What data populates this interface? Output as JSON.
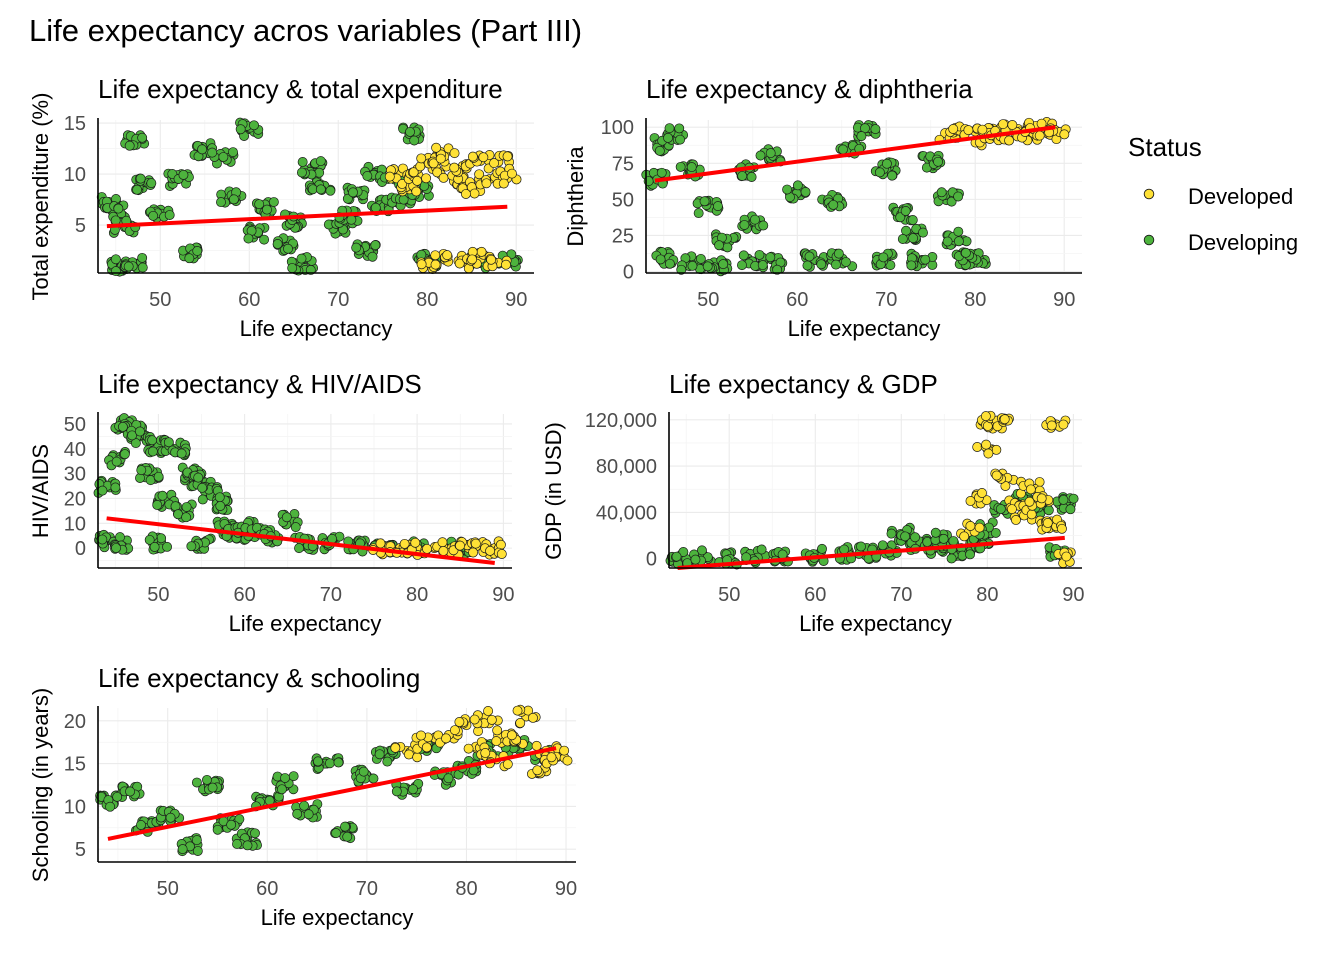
{
  "title": "Life expectancy acros variables (Part III)",
  "colors": {
    "developed": "#FFE135",
    "developing": "#4DB33D",
    "outline": "#1a1a1a",
    "fit_line": "#FF0000"
  },
  "legend": {
    "title": "Status",
    "placement": "right",
    "items": [
      {
        "label": "Developed",
        "color": "#FFE135"
      },
      {
        "label": "Developing",
        "color": "#4DB33D"
      }
    ]
  },
  "chart_data": [
    {
      "type": "scatter",
      "title": "Life expectancy & total expenditure",
      "xlabel": "Life expectancy",
      "ylabel": "Total expenditure (%)",
      "xlim": [
        43,
        92
      ],
      "ylim": [
        0.3,
        15.3
      ],
      "xticks": [
        50,
        60,
        70,
        80,
        90
      ],
      "yticks": [
        5,
        10,
        15
      ],
      "xtick_labels": [
        "50",
        "60",
        "70",
        "80",
        "90"
      ],
      "ytick_labels": [
        "5",
        "10",
        "15"
      ],
      "grid": true,
      "trend_line": {
        "x": [
          44,
          89
        ],
        "y": [
          4.9,
          6.8
        ]
      },
      "series": [
        {
          "name": "Developing",
          "points": [
            [
              44,
              7.1
            ],
            [
              45,
              6.3
            ],
            [
              46,
              4.8
            ],
            [
              47,
              13.2
            ],
            [
              48,
              8.9
            ],
            [
              50,
              6.0
            ],
            [
              52,
              9.5
            ],
            [
              55,
              12.4
            ],
            [
              58,
              7.8
            ],
            [
              60,
              14.4
            ],
            [
              62,
              6.6
            ],
            [
              64,
              3.1
            ],
            [
              65,
              5.4
            ],
            [
              66,
              1.2
            ],
            [
              68,
              9.0
            ],
            [
              70,
              4.7
            ],
            [
              72,
              8.2
            ],
            [
              73,
              2.5
            ],
            [
              74,
              10.1
            ],
            [
              75,
              6.9
            ],
            [
              76,
              9.6
            ],
            [
              77,
              7.2
            ],
            [
              78,
              13.9
            ],
            [
              80,
              1.6
            ],
            [
              86,
              1.4
            ],
            [
              89,
              1.5
            ],
            [
              45,
              1.1
            ],
            [
              47,
              1.2
            ],
            [
              53,
              2.3
            ],
            [
              57,
              11.7
            ],
            [
              61,
              4.2
            ],
            [
              67,
              10.6
            ],
            [
              71,
              5.8
            ],
            [
              79,
              8.4
            ]
          ]
        },
        {
          "name": "Developed",
          "points": [
            [
              77,
              10.2
            ],
            [
              78,
              8.5
            ],
            [
              79,
              9.9
            ],
            [
              80,
              11.1
            ],
            [
              81,
              10.6
            ],
            [
              82,
              12.0
            ],
            [
              83,
              9.3
            ],
            [
              84,
              10.8
            ],
            [
              85,
              8.7
            ],
            [
              86,
              11.3
            ],
            [
              87,
              9.5
            ],
            [
              88,
              11.2
            ],
            [
              89,
              9.6
            ],
            [
              80,
              1.3
            ],
            [
              82,
              1.6
            ],
            [
              84,
              1.4
            ],
            [
              86,
              1.7
            ],
            [
              88,
              1.3
            ]
          ]
        }
      ]
    },
    {
      "type": "scatter",
      "title": "Life expectancy & diphtheria",
      "xlabel": "Life expectancy",
      "ylabel": "Diphtheria",
      "xlim": [
        43,
        92
      ],
      "ylim": [
        -1,
        105
      ],
      "xticks": [
        50,
        60,
        70,
        80,
        90
      ],
      "yticks": [
        0,
        25,
        50,
        75,
        100
      ],
      "xtick_labels": [
        "50",
        "60",
        "70",
        "80",
        "90"
      ],
      "ytick_labels": [
        "0",
        "25",
        "50",
        "75",
        "100"
      ],
      "grid": true,
      "trend_line": {
        "x": [
          44,
          89
        ],
        "y": [
          63,
          100
        ]
      },
      "series": [
        {
          "name": "Developing",
          "points": [
            [
              44,
              64
            ],
            [
              45,
              88
            ],
            [
              46,
              95
            ],
            [
              48,
              70
            ],
            [
              50,
              45
            ],
            [
              52,
              21
            ],
            [
              54,
              70
            ],
            [
              55,
              34
            ],
            [
              57,
              80
            ],
            [
              60,
              55
            ],
            [
              62,
              8
            ],
            [
              64,
              49
            ],
            [
              66,
              85
            ],
            [
              68,
              97
            ],
            [
              70,
              71
            ],
            [
              72,
              40
            ],
            [
              73,
              26
            ],
            [
              75,
              76
            ],
            [
              77,
              51
            ],
            [
              78,
              23
            ],
            [
              80,
              9
            ],
            [
              45,
              9
            ],
            [
              48,
              6
            ],
            [
              51,
              4
            ],
            [
              55,
              7
            ],
            [
              58,
              6
            ],
            [
              65,
              8
            ],
            [
              70,
              8
            ],
            [
              74,
              8
            ],
            [
              79,
              9
            ]
          ]
        },
        {
          "name": "Developed",
          "points": [
            [
              77,
              95
            ],
            [
              78,
              98
            ],
            [
              80,
              97
            ],
            [
              81,
              92
            ],
            [
              82,
              99
            ],
            [
              83,
              95
            ],
            [
              84,
              98
            ],
            [
              85,
              97
            ],
            [
              86,
              93
            ],
            [
              87,
              99
            ],
            [
              88,
              98
            ],
            [
              89,
              96
            ]
          ]
        }
      ]
    },
    {
      "type": "scatter",
      "title": "Life expectancy & HIV/AIDS",
      "xlabel": "Life expectancy",
      "ylabel": "HIV/AIDS",
      "xlim": [
        43,
        91
      ],
      "ylim": [
        -8,
        54
      ],
      "xticks": [
        50,
        60,
        70,
        80,
        90
      ],
      "yticks": [
        0,
        10,
        20,
        30,
        40,
        50
      ],
      "xtick_labels": [
        "50",
        "60",
        "70",
        "80",
        "90"
      ],
      "ytick_labels": [
        "0",
        "10",
        "20",
        "30",
        "40",
        "50"
      ],
      "grid": true,
      "trend_line": {
        "x": [
          44,
          89
        ],
        "y": [
          12,
          -6
        ]
      },
      "series": [
        {
          "name": "Developing",
          "points": [
            [
              44,
              25
            ],
            [
              45,
              36
            ],
            [
              46,
              50
            ],
            [
              47,
              48
            ],
            [
              48,
              45
            ],
            [
              49,
              30
            ],
            [
              50,
              41
            ],
            [
              51,
              19
            ],
            [
              52,
              40
            ],
            [
              53,
              15
            ],
            [
              54,
              30
            ],
            [
              55,
              27
            ],
            [
              56,
              22
            ],
            [
              57,
              18
            ],
            [
              58,
              8
            ],
            [
              59,
              5
            ],
            [
              60,
              6
            ],
            [
              61,
              9
            ],
            [
              63,
              5
            ],
            [
              65,
              11
            ],
            [
              67,
              2
            ],
            [
              70,
              2
            ],
            [
              73,
              1
            ],
            [
              76,
              0
            ],
            [
              80,
              0
            ],
            [
              85,
              0
            ],
            [
              44,
              3
            ],
            [
              46,
              2
            ],
            [
              50,
              2
            ],
            [
              55,
              2
            ]
          ]
        },
        {
          "name": "Developed",
          "points": [
            [
              76,
              0
            ],
            [
              78,
              0
            ],
            [
              80,
              0
            ],
            [
              82,
              0
            ],
            [
              84,
              0
            ],
            [
              86,
              0
            ],
            [
              88,
              0
            ],
            [
              89,
              0
            ]
          ]
        }
      ]
    },
    {
      "type": "scatter",
      "title": "Life expectancy & GDP",
      "xlabel": "Life expectancy",
      "ylabel": "GDP (in USD)",
      "xlim": [
        43,
        91
      ],
      "ylim": [
        -8000,
        125000
      ],
      "xticks": [
        50,
        60,
        70,
        80,
        90
      ],
      "yticks": [
        0,
        40000,
        80000,
        120000
      ],
      "xtick_labels": [
        "50",
        "60",
        "70",
        "80",
        "90"
      ],
      "ytick_labels": [
        "0",
        "40,000",
        "80,000",
        "120,000"
      ],
      "grid": true,
      "trend_line": {
        "x": [
          44,
          89
        ],
        "y": [
          -8000,
          18000
        ]
      },
      "series": [
        {
          "name": "Developing",
          "points": [
            [
              44,
              1000
            ],
            [
              47,
              1500
            ],
            [
              50,
              800
            ],
            [
              53,
              2500
            ],
            [
              56,
              1800
            ],
            [
              60,
              3000
            ],
            [
              63,
              4500
            ],
            [
              66,
              5200
            ],
            [
              69,
              8000
            ],
            [
              70,
              21000
            ],
            [
              72,
              13000
            ],
            [
              74,
              9500
            ],
            [
              75,
              17000
            ],
            [
              77,
              6000
            ],
            [
              79,
              14000
            ],
            [
              80,
              26000
            ],
            [
              82,
              42000
            ],
            [
              84,
              50000
            ],
            [
              86,
              45000
            ],
            [
              88,
              5000
            ],
            [
              89,
              48000
            ]
          ]
        },
        {
          "name": "Developed",
          "points": [
            [
              78,
              25000
            ],
            [
              79,
              52000
            ],
            [
              80,
              95000
            ],
            [
              80,
              116000
            ],
            [
              81,
              118000
            ],
            [
              82,
              121000
            ],
            [
              82,
              68000
            ],
            [
              83,
              45000
            ],
            [
              84,
              38000
            ],
            [
              85,
              62000
            ],
            [
              86,
              50000
            ],
            [
              87,
              30000
            ],
            [
              88,
              116000
            ],
            [
              88,
              28000
            ],
            [
              89,
              2000
            ]
          ]
        }
      ]
    },
    {
      "type": "scatter",
      "title": "Life expectancy & schooling",
      "xlabel": "Life expectancy",
      "ylabel": "Schooling (in years)",
      "xlim": [
        43,
        91
      ],
      "ylim": [
        3.5,
        21.5
      ],
      "xticks": [
        50,
        60,
        70,
        80,
        90
      ],
      "yticks": [
        5,
        10,
        15,
        20
      ],
      "xtick_labels": [
        "50",
        "60",
        "70",
        "80",
        "90"
      ],
      "ytick_labels": [
        "5",
        "10",
        "15",
        "20"
      ],
      "grid": true,
      "trend_line": {
        "x": [
          44,
          89
        ],
        "y": [
          6.2,
          16.8
        ]
      },
      "series": [
        {
          "name": "Developing",
          "points": [
            [
              44,
              10.5
            ],
            [
              46,
              11.8
            ],
            [
              48,
              7.5
            ],
            [
              50,
              9.0
            ],
            [
              52,
              5.5
            ],
            [
              54,
              12.5
            ],
            [
              56,
              8.0
            ],
            [
              58,
              6.2
            ],
            [
              60,
              10.8
            ],
            [
              62,
              12.8
            ],
            [
              64,
              9.5
            ],
            [
              66,
              15.0
            ],
            [
              68,
              7.0
            ],
            [
              70,
              13.5
            ],
            [
              72,
              15.8
            ],
            [
              74,
              12.0
            ],
            [
              76,
              17.0
            ],
            [
              78,
              13.3
            ],
            [
              80,
              14.5
            ],
            [
              82,
              16.5
            ],
            [
              85,
              17.0
            ],
            [
              88,
              16.0
            ]
          ]
        },
        {
          "name": "Developed",
          "points": [
            [
              74,
              16.5
            ],
            [
              76,
              17.5
            ],
            [
              78,
              18.0
            ],
            [
              80,
              19.5
            ],
            [
              81,
              16.8
            ],
            [
              82,
              20.5
            ],
            [
              83,
              15.5
            ],
            [
              84,
              18.2
            ],
            [
              85,
              17.8
            ],
            [
              86,
              20.5
            ],
            [
              87,
              14.0
            ],
            [
              88,
              16.5
            ],
            [
              89,
              15.8
            ]
          ]
        }
      ]
    }
  ]
}
